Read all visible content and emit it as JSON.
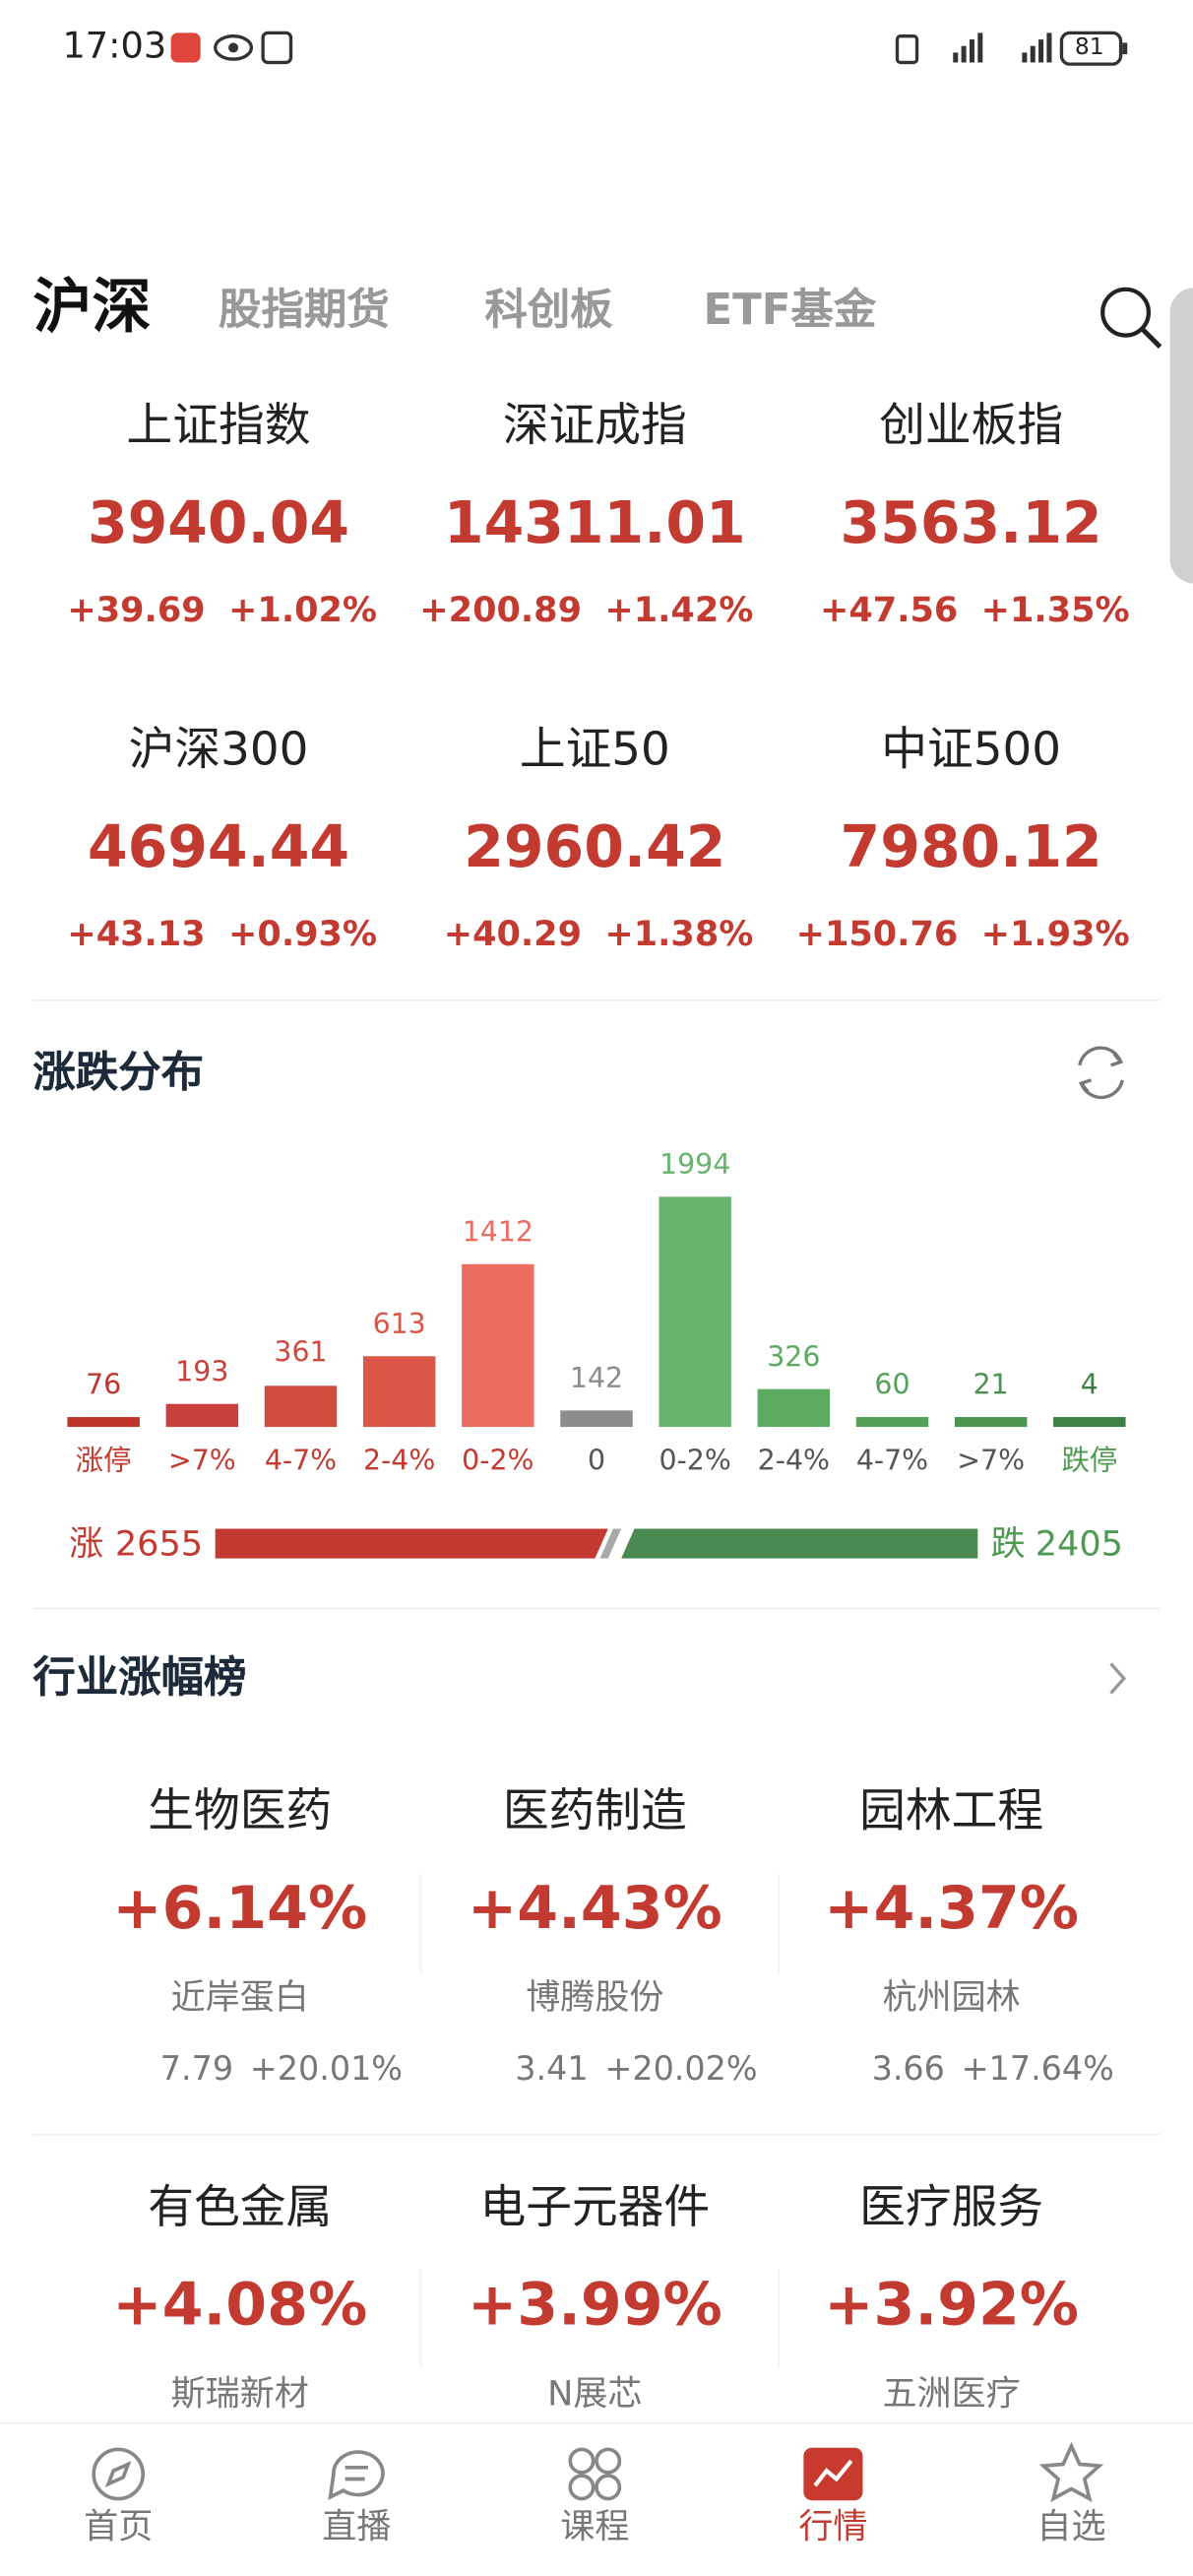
{
  "status": {
    "time": "17:03",
    "battery": "81"
  },
  "tabs": [
    "沪深",
    "股指期货",
    "科创板",
    "ETF基金"
  ],
  "indices": [
    {
      "name": "上证指数",
      "value": "3940.04",
      "change": "+39.69",
      "pct": "+1.02%"
    },
    {
      "name": "深证成指",
      "value": "14311.01",
      "change": "+200.89",
      "pct": "+1.42%"
    },
    {
      "name": "创业板指",
      "value": "3563.12",
      "change": "+47.56",
      "pct": "+1.35%"
    },
    {
      "name": "沪深300",
      "value": "4694.44",
      "change": "+43.13",
      "pct": "+0.93%"
    },
    {
      "name": "上证50",
      "value": "2960.42",
      "change": "+40.29",
      "pct": "+1.38%"
    },
    {
      "name": "中证500",
      "value": "7980.12",
      "change": "+150.76",
      "pct": "+1.93%"
    }
  ],
  "distribution": {
    "title": "涨跌分布",
    "categories": [
      "涨停",
      ">7%",
      "4-7%",
      "2-4%",
      "0-2%",
      "0",
      "0-2%",
      "2-4%",
      "4-7%",
      ">7%",
      "跌停"
    ],
    "values": [
      76,
      193,
      361,
      613,
      1412,
      142,
      1994,
      326,
      60,
      21,
      4
    ],
    "colors": [
      "#c0352b",
      "#c8413a",
      "#d04a3e",
      "#db5647",
      "#ec6d5f",
      "#8c8c8c",
      "#67b46d",
      "#5cab61",
      "#53a058",
      "#4a944f",
      "#3f7f44"
    ],
    "rise": {
      "label": "涨",
      "count": 2655
    },
    "fall": {
      "label": "跌",
      "count": 2405
    }
  },
  "industry": {
    "title": "行业涨幅榜",
    "items": [
      {
        "name": "生物医药",
        "pct": "+6.14%",
        "stock": "近岸蛋白",
        "price": "7.79",
        "stock_pct": "+20.01%"
      },
      {
        "name": "医药制造",
        "pct": "+4.43%",
        "stock": "博腾股份",
        "price": "3.41",
        "stock_pct": "+20.02%"
      },
      {
        "name": "园林工程",
        "pct": "+4.37%",
        "stock": "杭州园林",
        "price": "3.66",
        "stock_pct": "+17.64%"
      },
      {
        "name": "有色金属",
        "pct": "+4.08%",
        "stock": "斯瑞新材"
      },
      {
        "name": "电子元器件",
        "pct": "+3.99%",
        "stock": "N展芯"
      },
      {
        "name": "医疗服务",
        "pct": "+3.92%",
        "stock": "五洲医疗"
      }
    ]
  },
  "nav": {
    "items": [
      "首页",
      "直播",
      "课程",
      "行情",
      "自选"
    ],
    "active": 3
  }
}
